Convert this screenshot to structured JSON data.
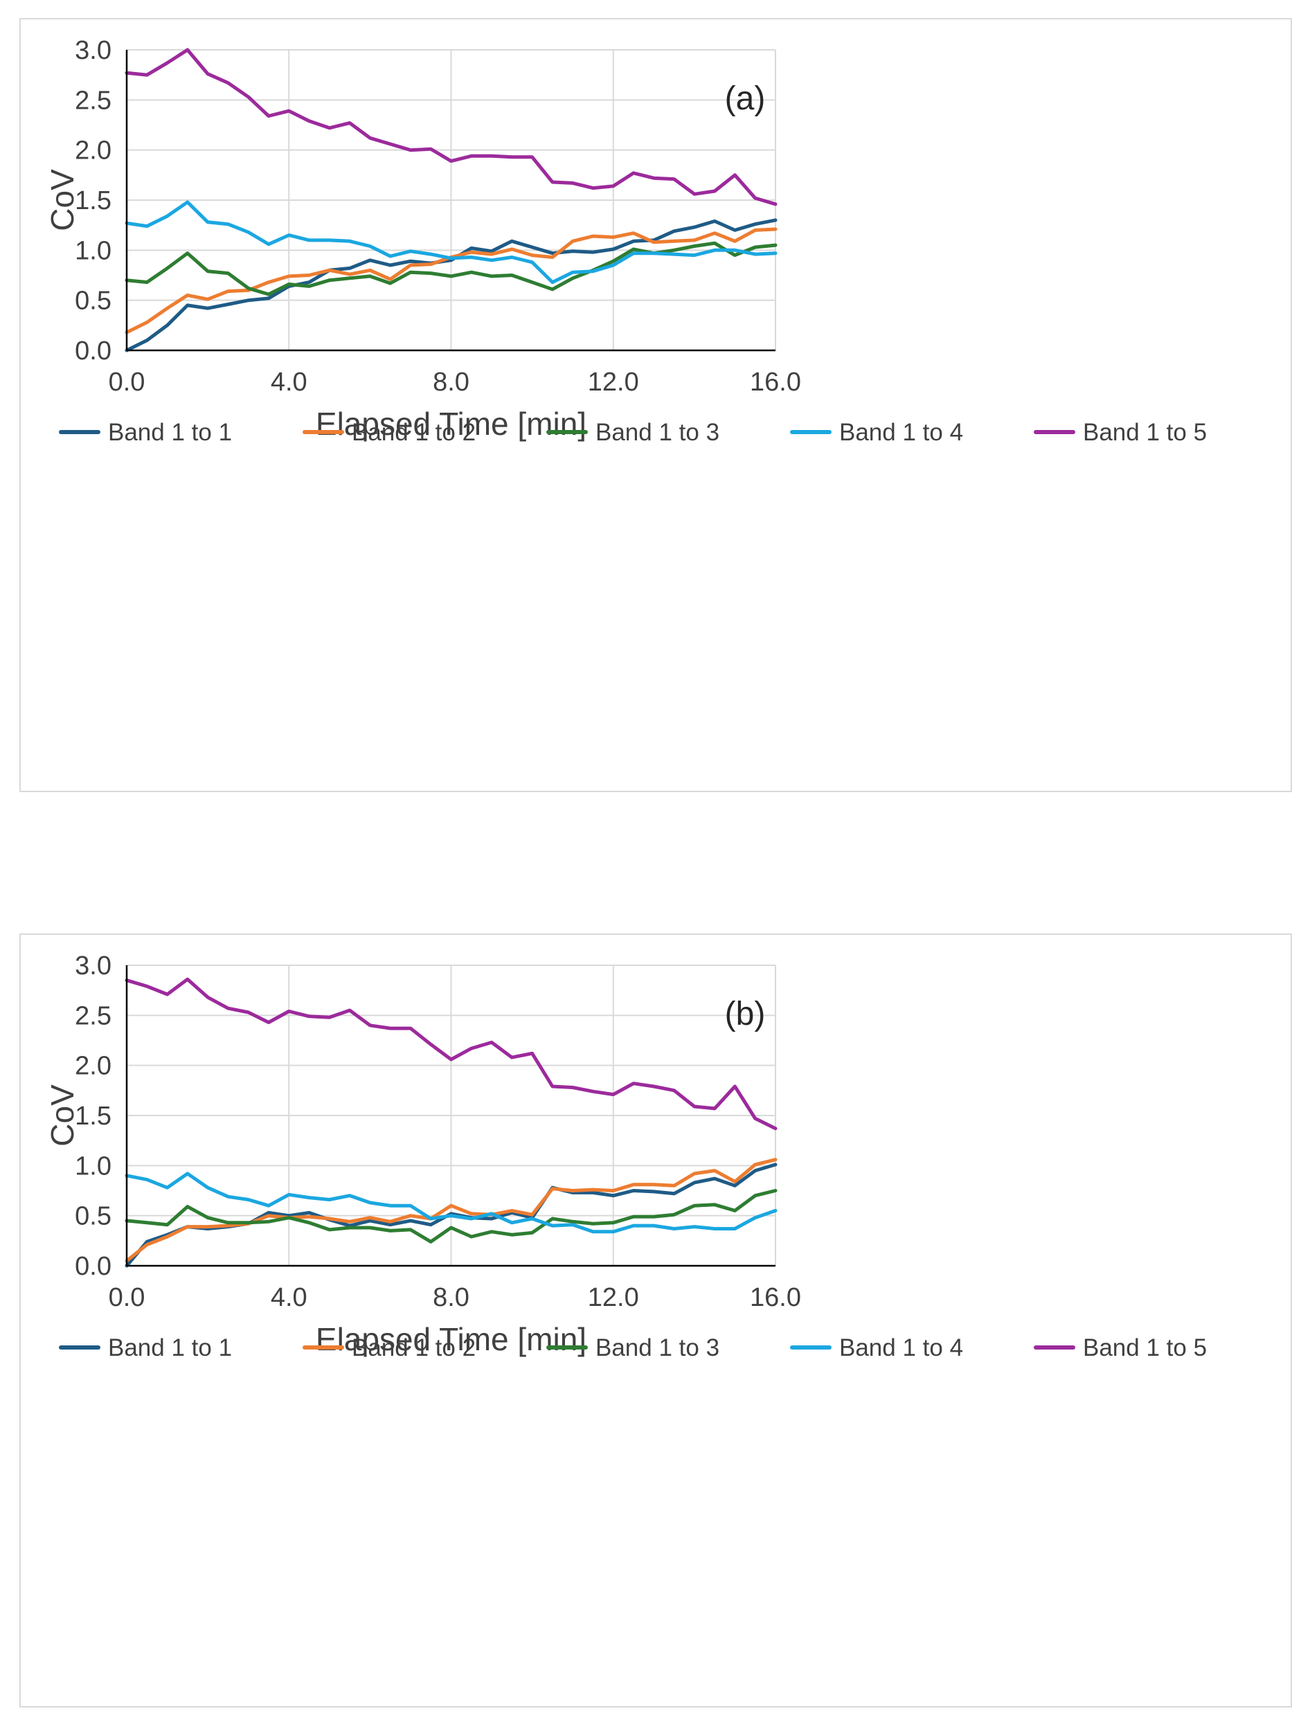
{
  "colors": {
    "Band 1 to 1": "#1f5b86",
    "Band 1 to 2": "#ed7d31",
    "Band 1 to 3": "#2e7d32",
    "Band 1 to 4": "#1ba7e0",
    "Band 1 to 5": "#9c2a9c",
    "grid": "#d9d9d9",
    "axis": "#000000"
  },
  "chart_data": [
    {
      "type": "line",
      "title": "",
      "panel_label": "(a)",
      "xlabel": "Elapsed Time [min]",
      "ylabel": "CoV",
      "xlim": [
        0,
        16
      ],
      "ylim": [
        0,
        3
      ],
      "xticks": [
        "0.0",
        "4.0",
        "8.0",
        "12.0",
        "16.0"
      ],
      "yticks": [
        "0.0",
        "0.5",
        "1.0",
        "1.5",
        "2.0",
        "2.5",
        "3.0"
      ],
      "grid": true,
      "legend_position": "bottom",
      "x": [
        0,
        0.5,
        1,
        1.5,
        2,
        2.5,
        3,
        3.5,
        4,
        4.5,
        5,
        5.5,
        6,
        6.5,
        7,
        7.5,
        8,
        8.5,
        9,
        9.5,
        10,
        10.5,
        11,
        11.5,
        12,
        12.5,
        13,
        13.5,
        14,
        14.5,
        15,
        15.5,
        16
      ],
      "series": [
        {
          "name": "Band 1 to 1",
          "values": [
            0.0,
            0.1,
            0.25,
            0.45,
            0.42,
            0.46,
            0.5,
            0.52,
            0.64,
            0.68,
            0.8,
            0.82,
            0.9,
            0.85,
            0.89,
            0.87,
            0.9,
            1.02,
            0.99,
            1.09,
            1.03,
            0.97,
            0.99,
            0.98,
            1.01,
            1.09,
            1.1,
            1.19,
            1.23,
            1.29,
            1.2,
            1.26,
            1.3
          ]
        },
        {
          "name": "Band 1 to 2",
          "values": [
            0.18,
            0.28,
            0.42,
            0.55,
            0.51,
            0.59,
            0.6,
            0.68,
            0.74,
            0.75,
            0.8,
            0.76,
            0.8,
            0.71,
            0.85,
            0.86,
            0.93,
            0.98,
            0.96,
            1.01,
            0.95,
            0.93,
            1.09,
            1.14,
            1.13,
            1.17,
            1.08,
            1.09,
            1.1,
            1.17,
            1.09,
            1.2,
            1.21
          ]
        },
        {
          "name": "Band 1 to 3",
          "values": [
            0.7,
            0.68,
            0.82,
            0.97,
            0.79,
            0.77,
            0.62,
            0.56,
            0.66,
            0.64,
            0.7,
            0.72,
            0.74,
            0.67,
            0.78,
            0.77,
            0.74,
            0.78,
            0.74,
            0.75,
            0.68,
            0.61,
            0.72,
            0.8,
            0.89,
            1.01,
            0.97,
            1.0,
            1.04,
            1.07,
            0.95,
            1.03,
            1.05
          ]
        },
        {
          "name": "Band 1 to 4",
          "values": [
            1.27,
            1.24,
            1.34,
            1.48,
            1.28,
            1.26,
            1.18,
            1.06,
            1.15,
            1.1,
            1.1,
            1.09,
            1.04,
            0.94,
            0.99,
            0.96,
            0.92,
            0.93,
            0.9,
            0.93,
            0.88,
            0.68,
            0.78,
            0.79,
            0.85,
            0.97,
            0.97,
            0.96,
            0.95,
            1.0,
            1.0,
            0.96,
            0.97
          ]
        },
        {
          "name": "Band 1 to 5",
          "values": [
            2.77,
            2.75,
            2.87,
            3.0,
            2.76,
            2.67,
            2.53,
            2.34,
            2.39,
            2.29,
            2.22,
            2.27,
            2.12,
            2.06,
            2.0,
            2.01,
            1.89,
            1.94,
            1.94,
            1.93,
            1.93,
            1.68,
            1.67,
            1.62,
            1.64,
            1.77,
            1.72,
            1.71,
            1.56,
            1.59,
            1.75,
            1.52,
            1.46
          ]
        }
      ]
    },
    {
      "type": "line",
      "title": "",
      "panel_label": "(b)",
      "xlabel": "Elapsed Time [min]",
      "ylabel": "CoV",
      "xlim": [
        0,
        16
      ],
      "ylim": [
        0,
        3
      ],
      "xticks": [
        "0.0",
        "4.0",
        "8.0",
        "12.0",
        "16.0"
      ],
      "yticks": [
        "0.0",
        "0.5",
        "1.0",
        "1.5",
        "2.0",
        "2.5",
        "3.0"
      ],
      "grid": true,
      "legend_position": "bottom",
      "x": [
        0,
        0.5,
        1,
        1.5,
        2,
        2.5,
        3,
        3.5,
        4,
        4.5,
        5,
        5.5,
        6,
        6.5,
        7,
        7.5,
        8,
        8.5,
        9,
        9.5,
        10,
        10.5,
        11,
        11.5,
        12,
        12.5,
        13,
        13.5,
        14,
        14.5,
        15,
        15.5,
        16
      ],
      "series": [
        {
          "name": "Band 1 to 1",
          "values": [
            0.0,
            0.24,
            0.31,
            0.39,
            0.37,
            0.39,
            0.42,
            0.53,
            0.5,
            0.53,
            0.46,
            0.4,
            0.45,
            0.41,
            0.45,
            0.41,
            0.52,
            0.48,
            0.47,
            0.53,
            0.48,
            0.78,
            0.73,
            0.73,
            0.7,
            0.75,
            0.74,
            0.72,
            0.83,
            0.87,
            0.8,
            0.95,
            1.01
          ]
        },
        {
          "name": "Band 1 to 2",
          "values": [
            0.05,
            0.21,
            0.29,
            0.39,
            0.39,
            0.4,
            0.42,
            0.5,
            0.48,
            0.49,
            0.47,
            0.44,
            0.48,
            0.44,
            0.5,
            0.47,
            0.6,
            0.52,
            0.51,
            0.55,
            0.51,
            0.77,
            0.75,
            0.76,
            0.75,
            0.81,
            0.81,
            0.8,
            0.92,
            0.95,
            0.84,
            1.01,
            1.06
          ]
        },
        {
          "name": "Band 1 to 3",
          "values": [
            0.45,
            0.43,
            0.41,
            0.59,
            0.48,
            0.43,
            0.43,
            0.44,
            0.48,
            0.43,
            0.36,
            0.38,
            0.38,
            0.35,
            0.36,
            0.24,
            0.38,
            0.29,
            0.34,
            0.31,
            0.33,
            0.47,
            0.44,
            0.42,
            0.43,
            0.49,
            0.49,
            0.51,
            0.6,
            0.61,
            0.55,
            0.7,
            0.75
          ]
        },
        {
          "name": "Band 1 to 4",
          "values": [
            0.9,
            0.86,
            0.78,
            0.92,
            0.78,
            0.69,
            0.66,
            0.6,
            0.71,
            0.68,
            0.66,
            0.7,
            0.63,
            0.6,
            0.6,
            0.47,
            0.5,
            0.47,
            0.52,
            0.43,
            0.47,
            0.4,
            0.41,
            0.34,
            0.34,
            0.4,
            0.4,
            0.37,
            0.39,
            0.37,
            0.37,
            0.48,
            0.55
          ]
        },
        {
          "name": "Band 1 to 5",
          "values": [
            2.85,
            2.79,
            2.71,
            2.86,
            2.68,
            2.57,
            2.53,
            2.43,
            2.54,
            2.49,
            2.48,
            2.55,
            2.4,
            2.37,
            2.37,
            2.21,
            2.06,
            2.17,
            2.23,
            2.08,
            2.12,
            1.79,
            1.78,
            1.74,
            1.71,
            1.82,
            1.79,
            1.75,
            1.59,
            1.57,
            1.79,
            1.47,
            1.37
          ]
        }
      ]
    }
  ]
}
